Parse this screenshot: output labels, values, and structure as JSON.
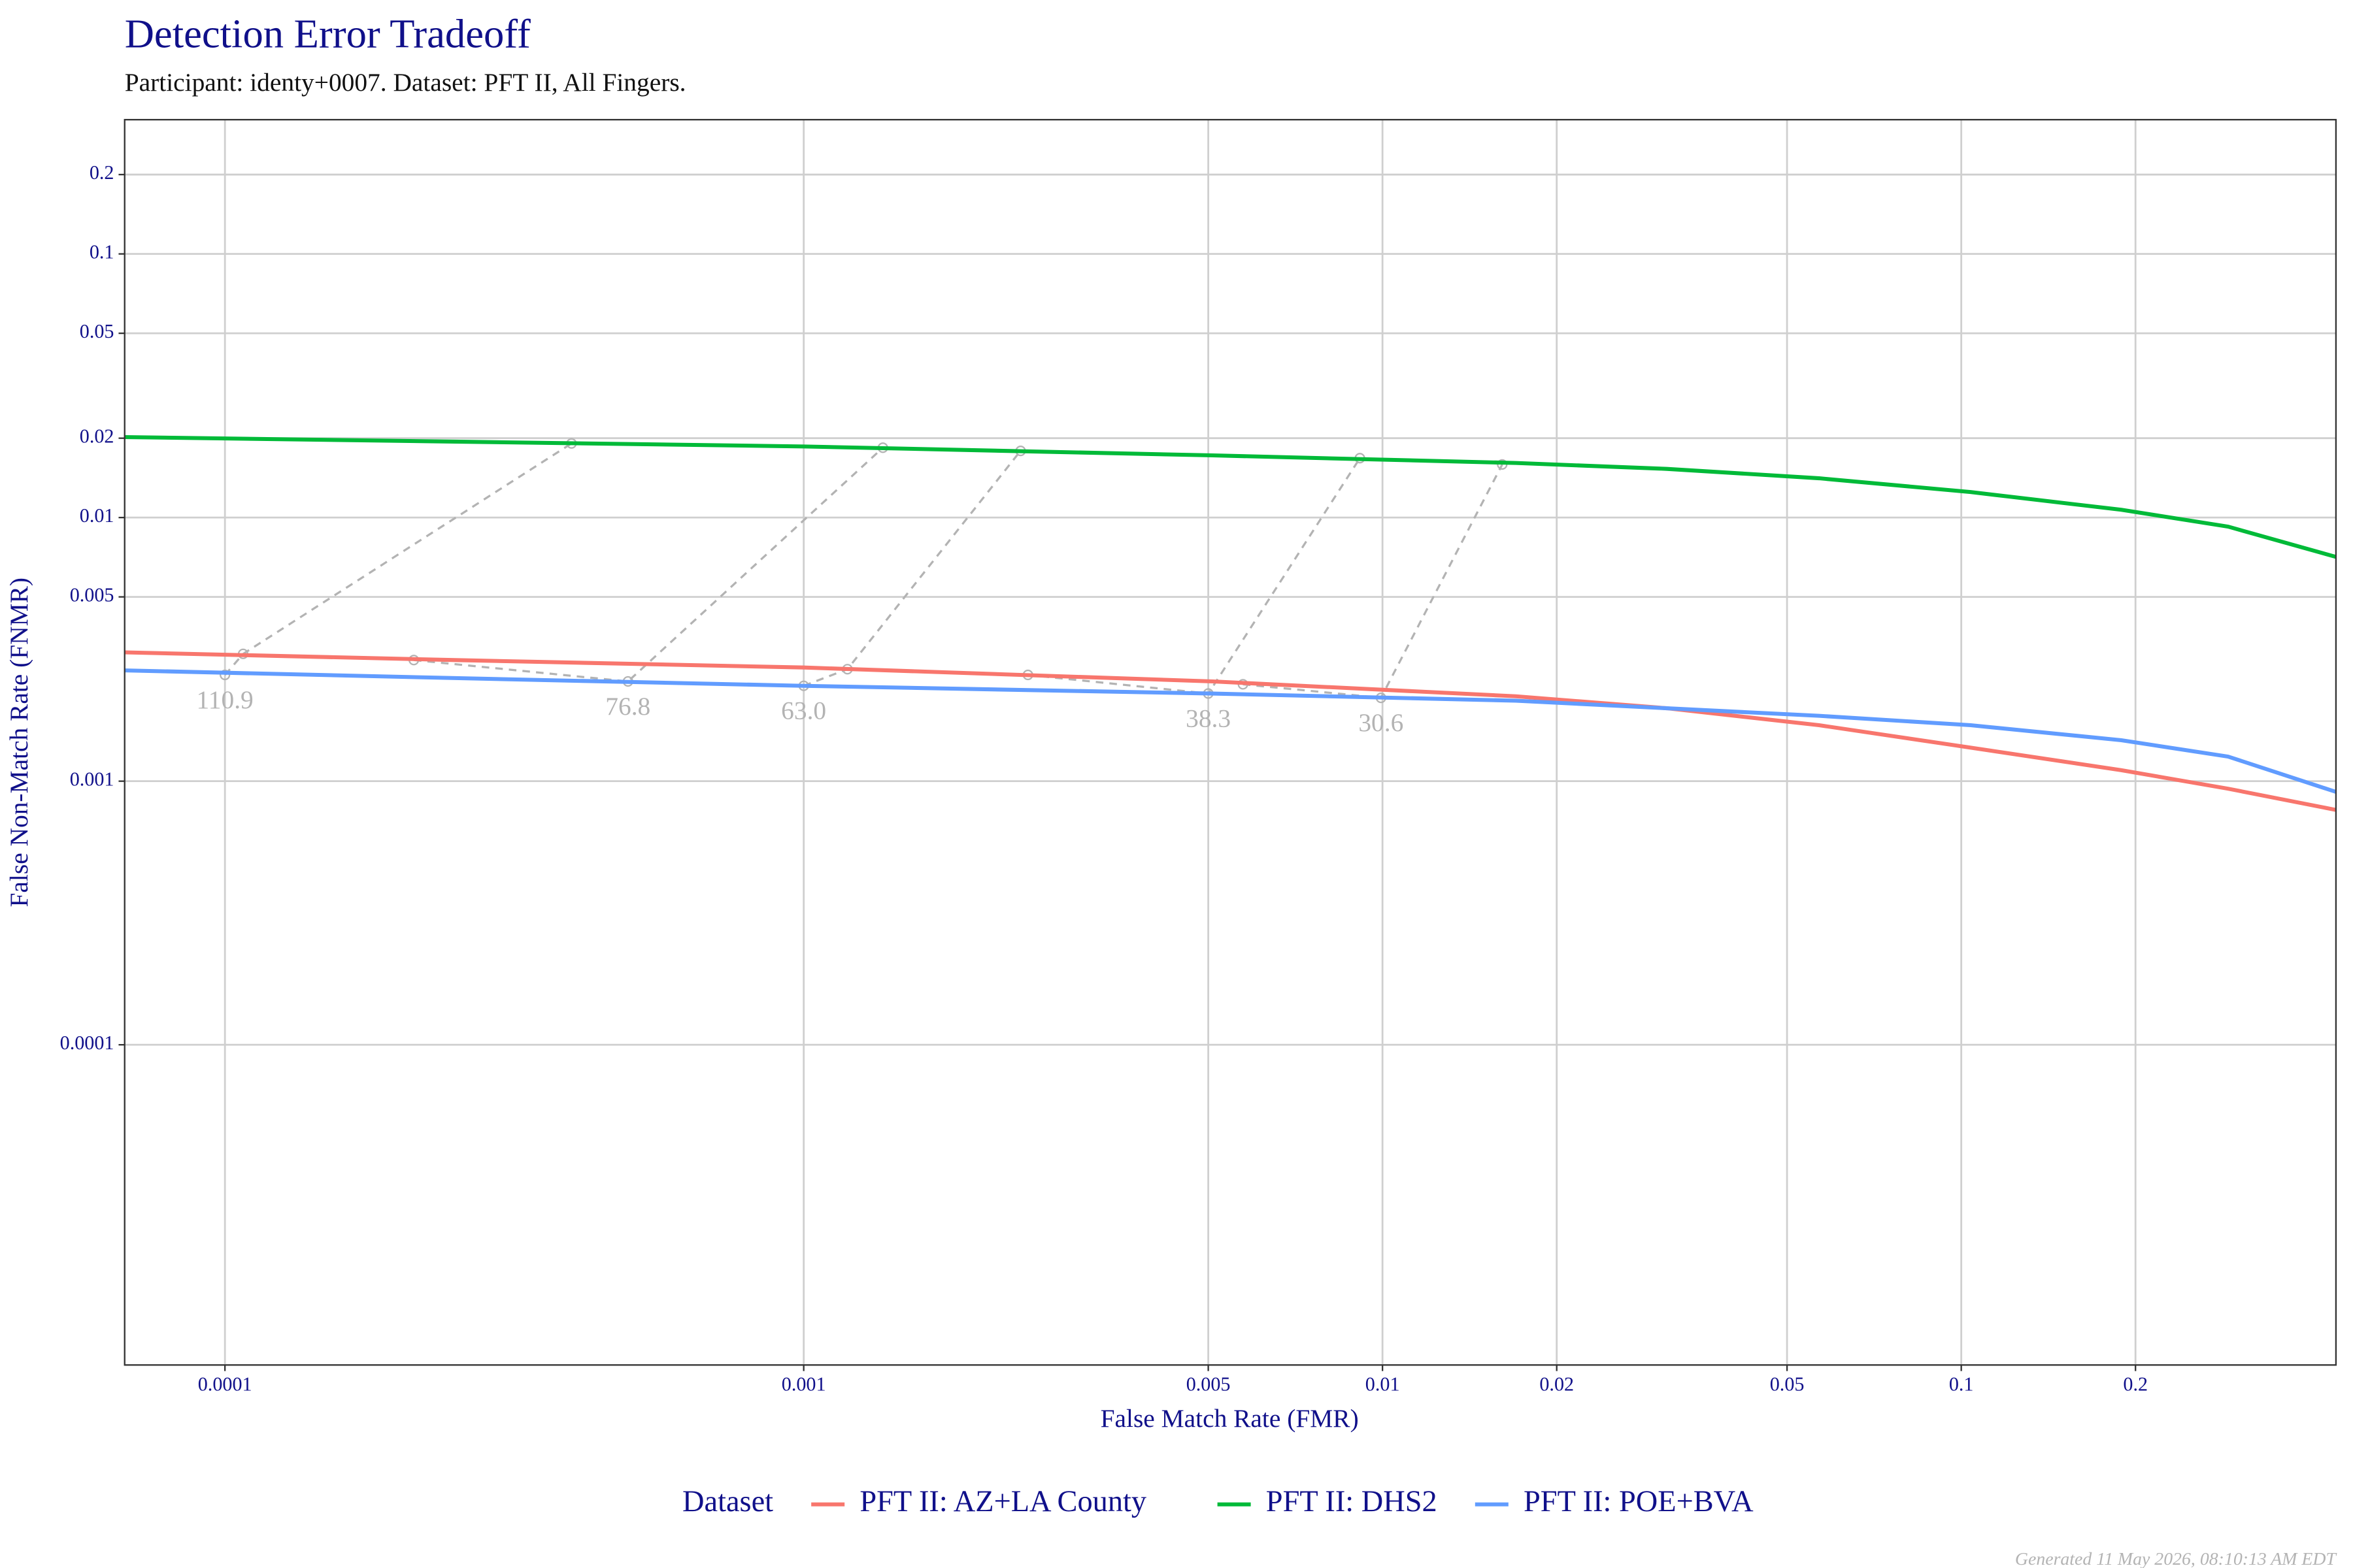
{
  "chart_data": {
    "type": "line",
    "title": "Detection Error Tradeoff",
    "subtitle": "Participant: identy+0007. Dataset: PFT II, All Fingers.",
    "x_label": "False Match Rate (FMR)",
    "y_label": "False Non-Match Rate (FNMR)",
    "x_log": true,
    "y_log": true,
    "grid": true,
    "xlim": [
      6.71e-05,
      0.444
    ],
    "ylim": [
      6.1e-06,
      0.323
    ],
    "xticks": [
      0.0001,
      0.001,
      0.005,
      0.01,
      0.02,
      0.05,
      0.1,
      0.2
    ],
    "yticks": [
      0.0001,
      0.001,
      0.005,
      0.01,
      0.02,
      0.05,
      0.1,
      0.2
    ],
    "legend_title": "Dataset",
    "legend_position": "bottom",
    "series": [
      {
        "name": "PFT II: AZ+LA County",
        "color": "#F8766D",
        "x": [
          6.71e-05,
          0.00025,
          0.001,
          0.00509,
          0.017,
          0.031,
          0.0568,
          0.1038,
          0.189,
          0.289,
          0.444
        ],
        "values": [
          0.00308,
          0.00288,
          0.0027,
          0.00239,
          0.0021,
          0.00189,
          0.00163,
          0.00134,
          0.0011,
          0.000936,
          0.000778
        ]
      },
      {
        "name": "PFT II: DHS2",
        "color": "#00BA38",
        "x": [
          6.71e-05,
          0.00025,
          0.001,
          0.00509,
          0.017,
          0.031,
          0.0568,
          0.1038,
          0.189,
          0.289,
          0.444
        ],
        "values": [
          0.0202,
          0.0194,
          0.0186,
          0.0172,
          0.0161,
          0.0153,
          0.0141,
          0.0125,
          0.0107,
          0.00924,
          0.00709
        ]
      },
      {
        "name": "PFT II: POE+BVA",
        "color": "#619CFF",
        "x": [
          6.71e-05,
          0.00025,
          0.001,
          0.00509,
          0.017,
          0.031,
          0.0568,
          0.1038,
          0.189,
          0.289,
          0.444
        ],
        "values": [
          0.00263,
          0.00246,
          0.0023,
          0.00215,
          0.00202,
          0.00189,
          0.00177,
          0.00163,
          0.00143,
          0.00124,
          0.000911
        ]
      }
    ],
    "thresholds": [
      {
        "label": "110.9",
        "x": [
          0.0001,
          0.0001075,
          0.000397
        ],
        "values": [
          0.00253,
          0.00304,
          0.0191
        ]
      },
      {
        "label": "76.8",
        "x": [
          0.000212,
          0.000497,
          0.00137
        ],
        "values": [
          0.00288,
          0.00239,
          0.0184
        ]
      },
      {
        "label": "63.0",
        "x": [
          0.001,
          0.00119,
          0.00237
        ],
        "values": [
          0.0023,
          0.00266,
          0.0179
        ]
      },
      {
        "label": "38.3",
        "x": [
          0.00244,
          0.005,
          0.00914
        ],
        "values": [
          0.00253,
          0.00215,
          0.0168
        ]
      },
      {
        "label": "30.6",
        "x": [
          0.00574,
          0.00994,
          0.0161
        ],
        "values": [
          0.00233,
          0.00207,
          0.0159
        ]
      }
    ],
    "threshold_color": "#b3b3b3",
    "footer": "Generated 11 May 2026, 08:10:13 AM EDT"
  }
}
